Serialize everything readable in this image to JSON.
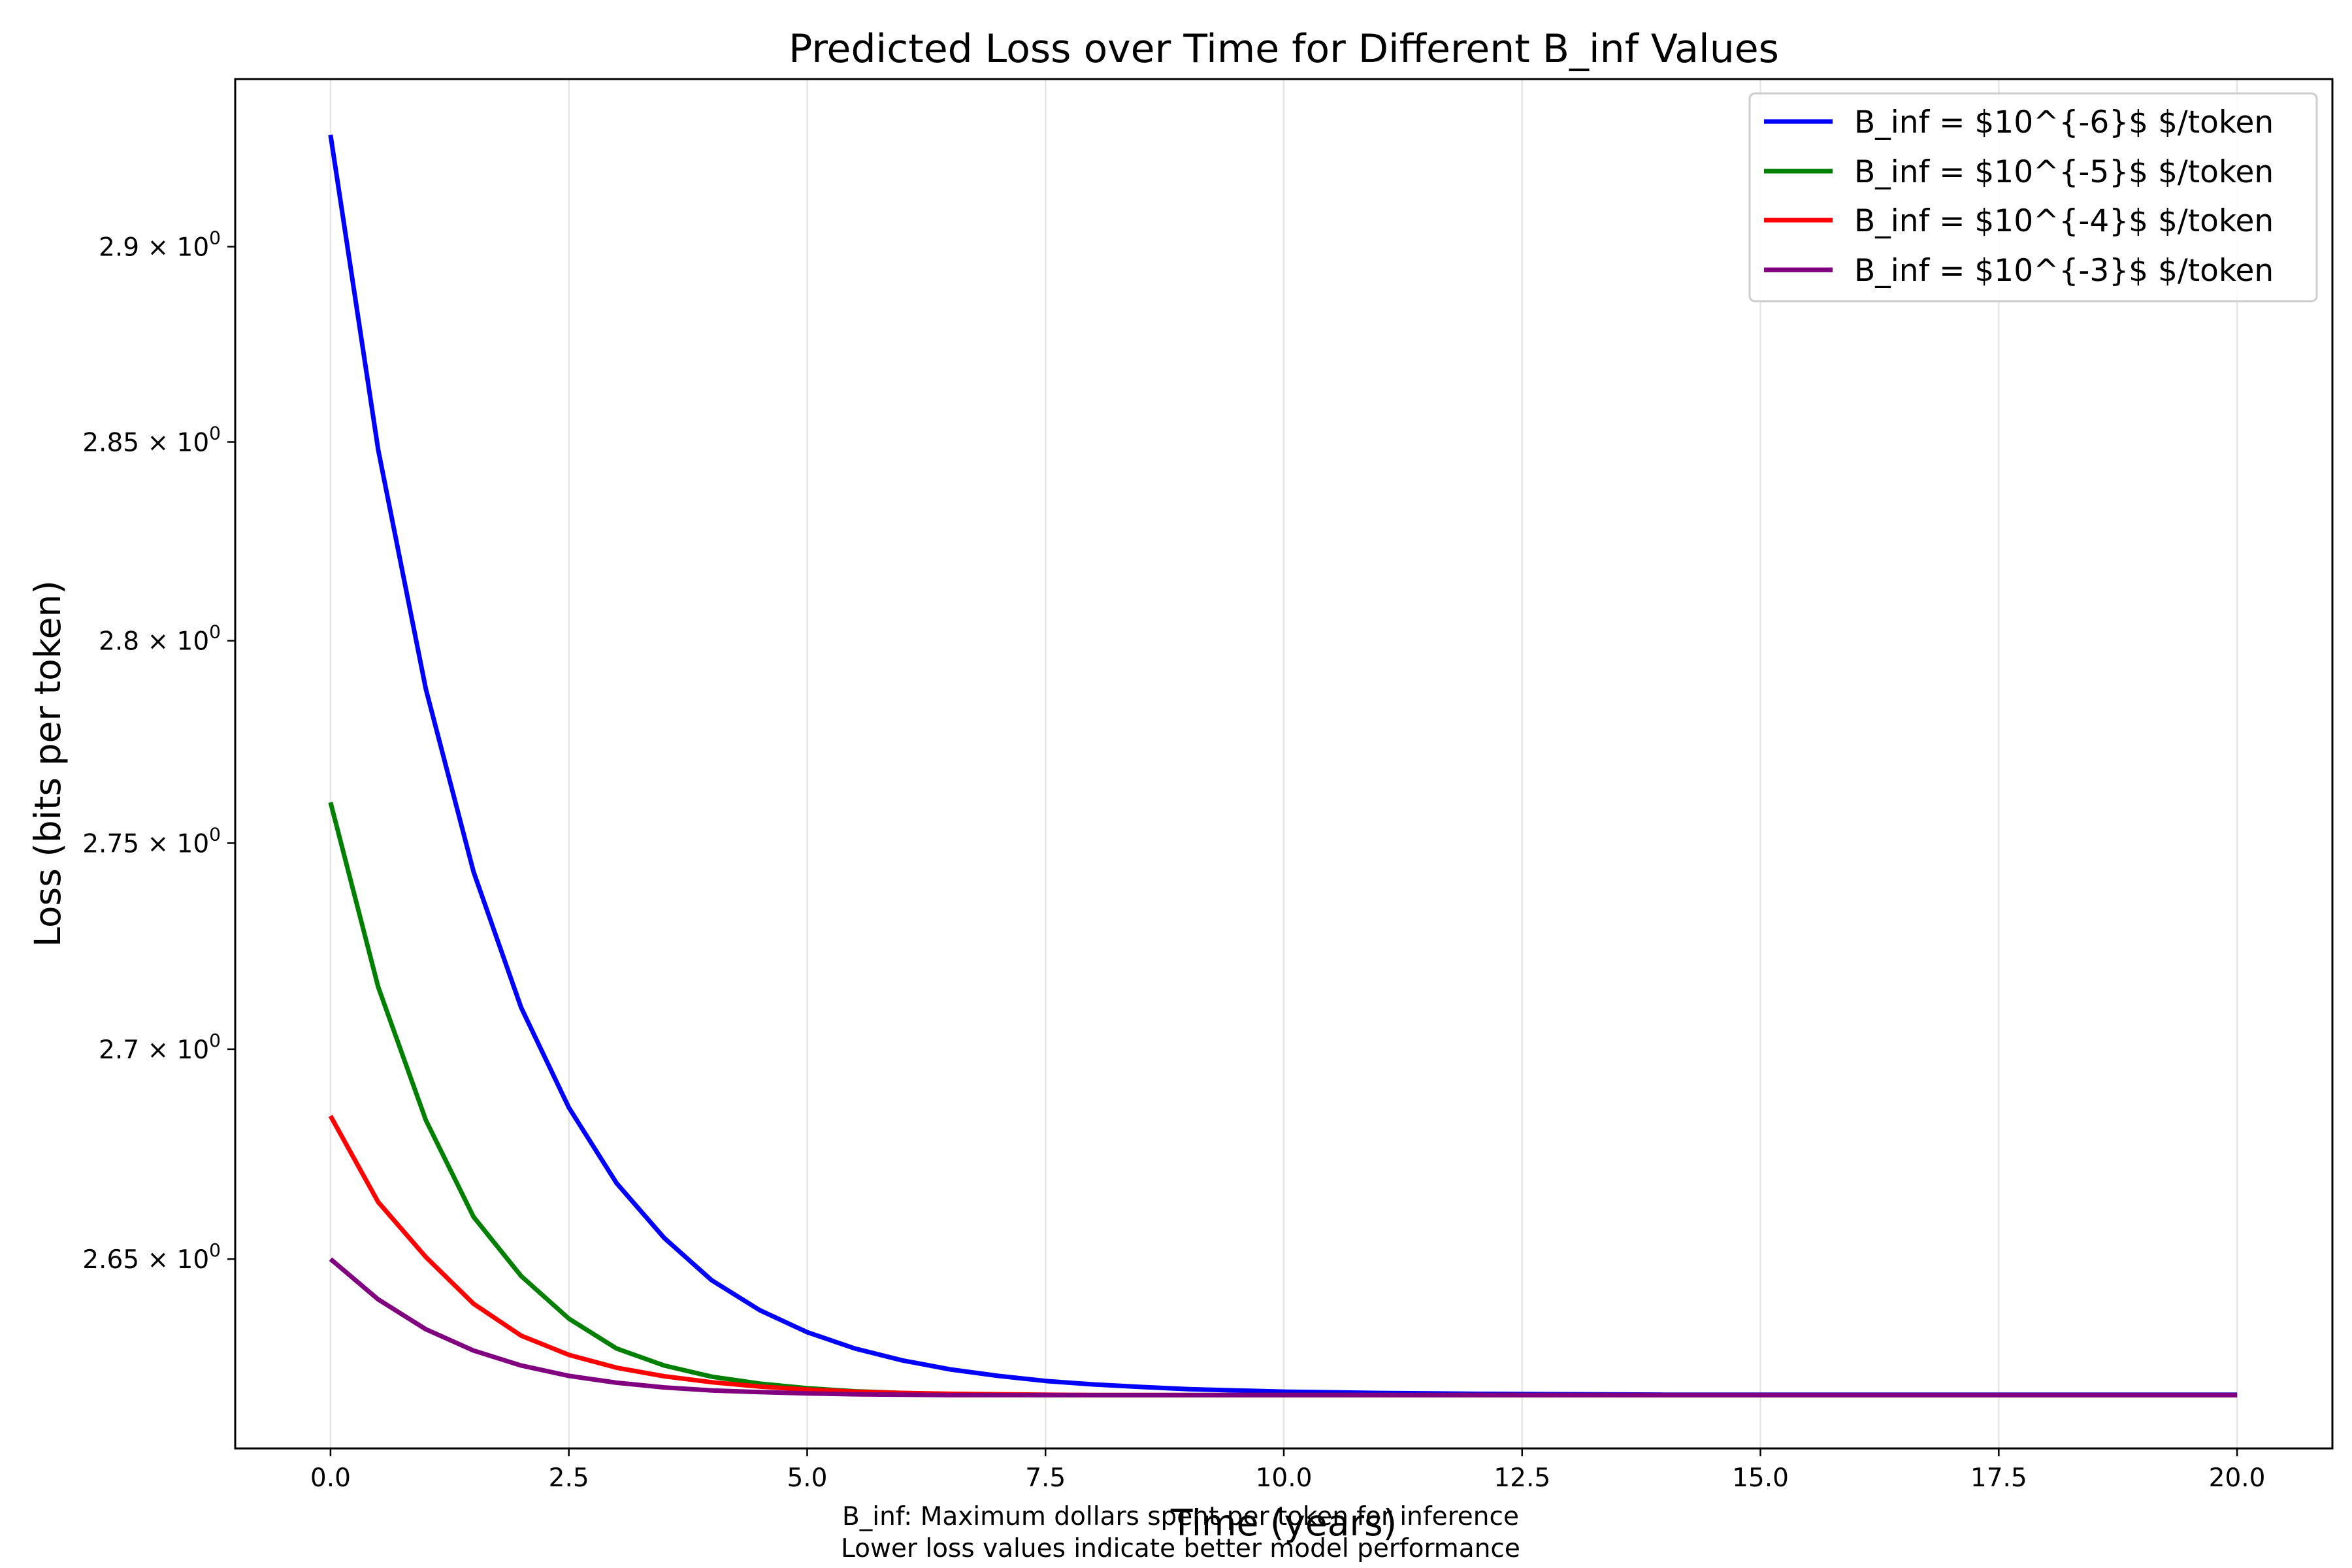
{
  "chart_data": {
    "type": "line",
    "title": "Predicted Loss over Time for Different B_inf Values",
    "xlabel": "Time (years)",
    "ylabel": "Loss (bits per token)",
    "yscale": "log",
    "xlim": [
      -1.0,
      21.0
    ],
    "ylim": [
      2.6057,
      2.9436
    ],
    "grid": "vertical, light gray",
    "x_ticks": [
      0.0,
      2.5,
      5.0,
      7.5,
      10.0,
      12.5,
      15.0,
      17.5,
      20.0
    ],
    "x_tick_labels": [
      "0.0",
      "2.5",
      "5.0",
      "7.5",
      "10.0",
      "12.5",
      "15.0",
      "17.5",
      "20.0"
    ],
    "y_ticks": [
      {
        "value": 2.65,
        "base": "2.65",
        "exp": "0"
      },
      {
        "value": 2.7,
        "base": "2.7",
        "exp": "0"
      },
      {
        "value": 2.75,
        "base": "2.75",
        "exp": "0"
      },
      {
        "value": 2.8,
        "base": "2.8",
        "exp": "0"
      },
      {
        "value": 2.85,
        "base": "2.85",
        "exp": "0"
      },
      {
        "value": 2.9,
        "base": "2.9",
        "exp": "0"
      }
    ],
    "x": [
      0,
      0.5,
      1,
      1.5,
      2,
      2.5,
      3,
      3.5,
      4,
      4.5,
      5,
      5.5,
      6,
      6.5,
      7,
      7.5,
      8,
      8.5,
      9,
      9.5,
      10,
      11,
      12,
      13,
      14,
      15,
      16,
      17,
      18,
      19,
      20
    ],
    "series": [
      {
        "name": "B_inf = $10^{-6}$ $/token",
        "color": "#0000ff",
        "values": [
          2.929,
          2.848,
          2.788,
          2.743,
          2.71,
          2.686,
          2.668,
          2.655,
          2.645,
          2.638,
          2.6328,
          2.629,
          2.6262,
          2.6241,
          2.6226,
          2.6214,
          2.6206,
          2.62,
          2.6195,
          2.6192,
          2.6189,
          2.6186,
          2.6184,
          2.6183,
          2.6182,
          2.6182,
          2.6182,
          2.6182,
          2.6182,
          2.6182,
          2.6182
        ]
      },
      {
        "name": "B_inf = $10^{-5}$ $/token",
        "color": "#008000",
        "values": [
          2.76,
          2.715,
          2.683,
          2.66,
          2.646,
          2.636,
          2.629,
          2.625,
          2.6224,
          2.6208,
          2.6197,
          2.619,
          2.6186,
          2.6183,
          2.6182,
          2.6181,
          2.6181,
          2.6181,
          2.6181,
          2.6181,
          2.6181,
          2.6181,
          2.6181,
          2.6181,
          2.6181,
          2.6181,
          2.6181,
          2.6181,
          2.6181,
          2.6181,
          2.6181
        ]
      },
      {
        "name": "B_inf = $10^{-4}$ $/token",
        "color": "#ff0000",
        "values": [
          2.684,
          2.6635,
          2.6505,
          2.6395,
          2.632,
          2.6275,
          2.6245,
          2.6225,
          2.6211,
          2.6201,
          2.6194,
          2.6189,
          2.6186,
          2.6184,
          2.6183,
          2.6182,
          2.6181,
          2.6181,
          2.6181,
          2.6181,
          2.6181,
          2.6181,
          2.6181,
          2.6181,
          2.6181,
          2.6181,
          2.6181,
          2.6181,
          2.6181,
          2.6181,
          2.6181
        ]
      },
      {
        "name": "B_inf = $10^{-3}$ $/token",
        "color": "#800080",
        "values": [
          2.65,
          2.6405,
          2.6335,
          2.6285,
          2.625,
          2.6226,
          2.621,
          2.6199,
          2.6192,
          2.6188,
          2.6185,
          2.6183,
          2.6182,
          2.6181,
          2.6181,
          2.6181,
          2.6181,
          2.6181,
          2.6181,
          2.6181,
          2.6181,
          2.6181,
          2.6181,
          2.6181,
          2.6181,
          2.6181,
          2.6181,
          2.6181,
          2.6181,
          2.6181,
          2.6181
        ]
      }
    ],
    "legend_position": "top-right",
    "footnotes": [
      "B_inf: Maximum dollars spent per token for inference",
      "Lower loss values indicate better model performance"
    ]
  }
}
